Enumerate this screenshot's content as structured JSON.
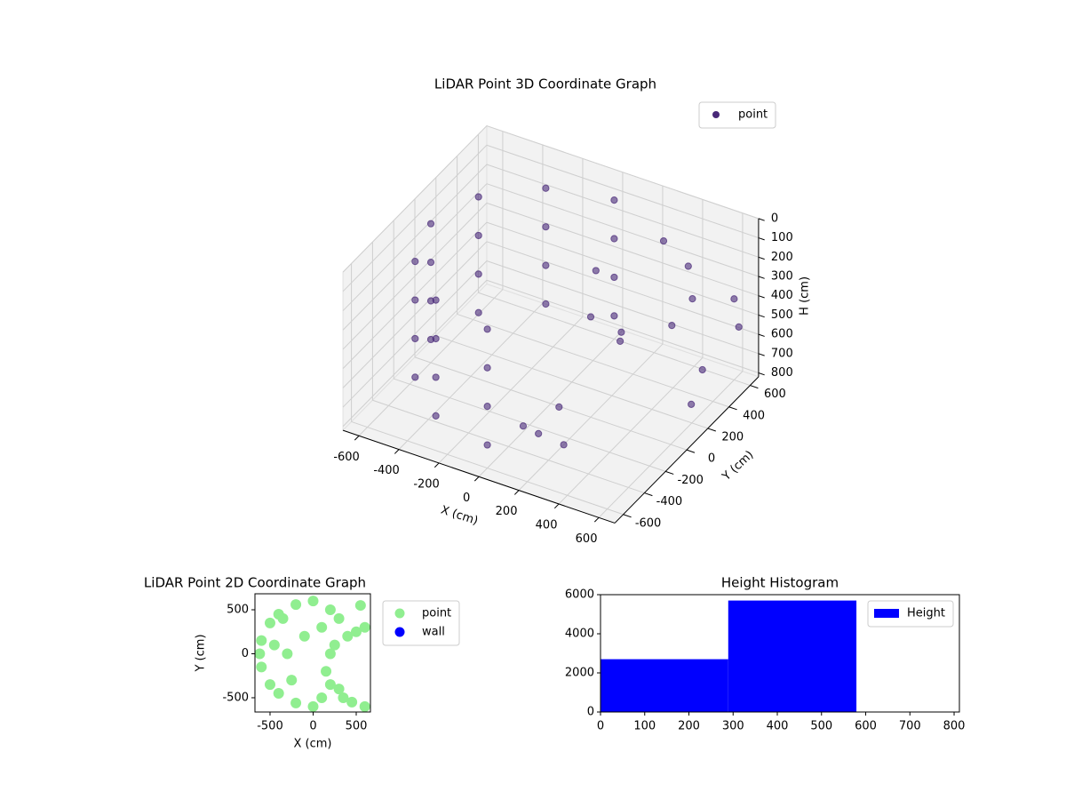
{
  "chart_data": [
    {
      "type": "scatter3d",
      "title": "LiDAR Point 3D Coordinate Graph",
      "xlabel": "X (cm)",
      "ylabel": "Y (cm)",
      "zlabel": "H (cm)",
      "series": [
        {
          "name": "point",
          "color": "#482878",
          "x": [
            0,
            -300,
            -520,
            -600,
            -520,
            -300,
            0,
            0,
            -300,
            -520,
            -600,
            -520,
            -300,
            0,
            0,
            -300,
            -520,
            -600,
            -520,
            -300,
            0,
            0,
            -300,
            -520,
            -600,
            -520,
            -300,
            0,
            300,
            450,
            550,
            600,
            500,
            400,
            200,
            100,
            150,
            250,
            650,
            600,
            650,
            120,
            200,
            300
          ],
          "y": [
            600,
            520,
            300,
            0,
            -300,
            -520,
            -600,
            600,
            520,
            300,
            0,
            -300,
            -520,
            -600,
            600,
            520,
            300,
            0,
            -300,
            -520,
            -600,
            600,
            520,
            300,
            0,
            -300,
            -520,
            -600,
            500,
            450,
            300,
            600,
            200,
            -100,
            -300,
            -450,
            -400,
            -350,
            550,
            300,
            100,
            200,
            0,
            100
          ],
          "z": [
            100,
            100,
            100,
            100,
            100,
            100,
            100,
            300,
            300,
            300,
            300,
            300,
            300,
            300,
            500,
            500,
            500,
            500,
            500,
            500,
            500,
            700,
            700,
            700,
            700,
            700,
            700,
            700,
            150,
            200,
            250,
            400,
            350,
            300,
            600,
            650,
            700,
            750,
            500,
            600,
            650,
            200,
            300,
            400
          ]
        }
      ],
      "xlim": [
        -680,
        680
      ],
      "ylim": [
        -680,
        680
      ],
      "zlim": [
        0,
        820
      ],
      "zinverted": true,
      "xticks": [
        -600,
        -400,
        -200,
        0,
        200,
        400,
        600
      ],
      "yticks": [
        -600,
        -400,
        -200,
        0,
        200,
        400,
        600
      ],
      "zticks": [
        0,
        100,
        200,
        300,
        400,
        500,
        600,
        700,
        800
      ],
      "grid": true,
      "legend": "upper right"
    },
    {
      "type": "scatter",
      "title": "LiDAR Point 2D Coordinate Graph",
      "xlabel": "X (cm)",
      "ylabel": "Y (cm)",
      "series": [
        {
          "name": "point",
          "color": "#90ee90",
          "x": [
            0,
            -200,
            -400,
            -500,
            -600,
            -620,
            -600,
            -500,
            -400,
            -200,
            0,
            100,
            200,
            -300,
            -100,
            100,
            200,
            300,
            150,
            -250,
            250,
            400,
            500,
            600,
            550,
            300,
            350,
            450,
            600,
            200,
            -450,
            -350
          ],
          "y": [
            600,
            560,
            450,
            350,
            150,
            0,
            -150,
            -350,
            -450,
            -560,
            -600,
            -500,
            -350,
            0,
            200,
            300,
            500,
            400,
            -200,
            -300,
            100,
            200,
            250,
            300,
            550,
            -400,
            -500,
            -550,
            -600,
            0,
            100,
            400
          ]
        },
        {
          "name": "wall",
          "color": "#0000ff",
          "x": [],
          "y": []
        }
      ],
      "xlim": [
        -675,
        665
      ],
      "ylim": [
        -662,
        682
      ],
      "xticks": [
        -500,
        0,
        500
      ],
      "yticks": [
        -500,
        0,
        500
      ],
      "legend": "outside right"
    },
    {
      "type": "histogram",
      "title": "Height Histogram",
      "bins": [
        0,
        289,
        579,
        868
      ],
      "series": [
        {
          "name": "Height",
          "color": "#0000ff",
          "values": [
            2700,
            5700,
            5
          ]
        }
      ],
      "xlim": [
        0,
        812
      ],
      "ylim": [
        0,
        6000
      ],
      "xticks": [
        0,
        100,
        200,
        300,
        400,
        500,
        600,
        700,
        800
      ],
      "yticks": [
        0,
        2000,
        4000,
        6000
      ],
      "legend": "upper right"
    }
  ]
}
